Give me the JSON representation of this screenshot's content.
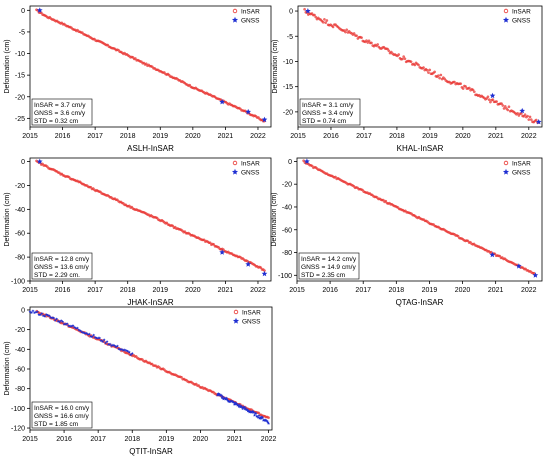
{
  "chart_data": [
    {
      "type": "scatter",
      "title": "ASLH-InSAR",
      "ylabel": "Deformation (cm)",
      "xlim": [
        2015.0,
        2022.4
      ],
      "ylim": [
        -27,
        1
      ],
      "xticks": [
        "2015",
        "2016",
        "2017",
        "2018",
        "2019",
        "2020",
        "2021",
        "2022"
      ],
      "yticks": [
        "0",
        "-5",
        "-10",
        "-15",
        "-20",
        "-25"
      ],
      "legend": [
        "InSAR",
        "GNSS"
      ],
      "legend_position": "top-right",
      "stats": [
        "InSAR = 3.7 cm/y",
        "GNSS = 3.6 cm/y",
        "STD    = 0.32 cm"
      ],
      "series": [
        {
          "name": "InSAR",
          "marker": "circle",
          "color": "#e8312d",
          "x": [
            2015.2,
            2015.5,
            2016.0,
            2016.5,
            2017.0,
            2017.5,
            2018.0,
            2018.5,
            2019.0,
            2019.5,
            2020.0,
            2020.5,
            2021.0,
            2021.5,
            2022.0,
            2022.2
          ],
          "y": [
            0,
            -1.4,
            -3.1,
            -4.9,
            -6.8,
            -8.6,
            -10.4,
            -12.3,
            -14.0,
            -15.9,
            -17.8,
            -19.5,
            -21.3,
            -23.0,
            -24.9,
            -25.7
          ]
        },
        {
          "name": "GNSS",
          "marker": "star",
          "color": "#1f2fd2",
          "x": [
            2015.3,
            2020.9,
            2021.7,
            2022.2
          ],
          "y": [
            0,
            -21.2,
            -23.5,
            -25.3
          ]
        }
      ]
    },
    {
      "type": "scatter",
      "title": "KHAL-InSAR",
      "ylabel": "Deformation (cm)",
      "xlim": [
        2015.0,
        2022.4
      ],
      "ylim": [
        -23,
        1
      ],
      "xticks": [
        "2015",
        "2016",
        "2017",
        "2018",
        "2019",
        "2020",
        "2021",
        "2022"
      ],
      "yticks": [
        "0",
        "-5",
        "-10",
        "-15",
        "-20"
      ],
      "legend": [
        "InSAR",
        "GNSS"
      ],
      "legend_position": "top-right",
      "stats": [
        "InSAR = 3.1 cm/y",
        "GNSS = 3.4 cm/y",
        "STD    = 0.74 cm"
      ],
      "series": [
        {
          "name": "InSAR",
          "marker": "circle",
          "color": "#e8312d",
          "x": [
            2015.2,
            2015.5,
            2016.0,
            2016.5,
            2017.0,
            2017.5,
            2018.0,
            2018.5,
            2019.0,
            2019.5,
            2020.0,
            2020.5,
            2021.0,
            2021.5,
            2022.0,
            2022.3
          ],
          "y": [
            0,
            -1.0,
            -2.6,
            -4.1,
            -5.7,
            -7.2,
            -8.8,
            -10.4,
            -12.0,
            -13.6,
            -15.0,
            -16.6,
            -18.2,
            -19.7,
            -21.3,
            -22.1
          ]
        },
        {
          "name": "GNSS",
          "marker": "star",
          "color": "#1f2fd2",
          "x": [
            2015.3,
            2020.9,
            2021.8,
            2022.3
          ],
          "y": [
            0,
            -16.8,
            -19.8,
            -22.0
          ]
        }
      ]
    },
    {
      "type": "scatter",
      "title": "JHAK-InSAR",
      "ylabel": "Deformation (cm)",
      "xlim": [
        2015.0,
        2022.4
      ],
      "ylim": [
        -100,
        3
      ],
      "xticks": [
        "2015",
        "2016",
        "2017",
        "2018",
        "2019",
        "2020",
        "2021",
        "2022"
      ],
      "yticks": [
        "0",
        "-20",
        "-40",
        "-60",
        "-80",
        "-100"
      ],
      "legend": [
        "InSAR",
        "GNSS"
      ],
      "legend_position": "top-right",
      "stats": [
        "InSAR = 12.8 cm/y",
        "GNSS = 13.6 cm/y",
        "STD    = 2.29 cm."
      ],
      "series": [
        {
          "name": "InSAR",
          "marker": "circle",
          "color": "#e8312d",
          "x": [
            2015.2,
            2015.5,
            2016.0,
            2016.5,
            2017.0,
            2017.5,
            2018.0,
            2018.5,
            2019.0,
            2019.5,
            2020.0,
            2020.5,
            2021.0,
            2021.5,
            2022.0,
            2022.2
          ],
          "y": [
            0,
            -4,
            -11,
            -17,
            -24,
            -30,
            -37,
            -43,
            -49,
            -56,
            -62,
            -68,
            -75,
            -81,
            -88,
            -91
          ]
        },
        {
          "name": "GNSS",
          "marker": "star",
          "color": "#1f2fd2",
          "x": [
            2015.3,
            2020.9,
            2021.7,
            2022.2
          ],
          "y": [
            0,
            -76,
            -86,
            -94
          ]
        }
      ]
    },
    {
      "type": "scatter",
      "title": "QTAG-InSAR",
      "ylabel": "Deformation (cm)",
      "xlim": [
        2015.0,
        2022.4
      ],
      "ylim": [
        -105,
        3
      ],
      "xticks": [
        "2015",
        "2016",
        "2017",
        "2018",
        "2019",
        "2020",
        "2021",
        "2022"
      ],
      "yticks": [
        "0",
        "-20",
        "-40",
        "-60",
        "-80",
        "-100"
      ],
      "legend": [
        "InSAR",
        "GNSS"
      ],
      "legend_position": "top-right",
      "stats": [
        "InSAR = 14.2 cm/y",
        "GNSS = 14.9 cm/y",
        "STD    = 2.35 cm"
      ],
      "series": [
        {
          "name": "InSAR",
          "marker": "circle",
          "color": "#e8312d",
          "x": [
            2015.2,
            2015.5,
            2016.0,
            2016.5,
            2017.0,
            2017.5,
            2018.0,
            2018.5,
            2019.0,
            2019.5,
            2020.0,
            2020.5,
            2021.0,
            2021.5,
            2022.0,
            2022.2
          ],
          "y": [
            0,
            -5,
            -12,
            -19,
            -26,
            -33,
            -40,
            -47,
            -54,
            -61,
            -68,
            -75,
            -82,
            -89,
            -96,
            -99
          ]
        },
        {
          "name": "GNSS",
          "marker": "star",
          "color": "#1f2fd2",
          "x": [
            2015.3,
            2020.9,
            2021.7,
            2022.2
          ],
          "y": [
            0,
            -82,
            -92,
            -100
          ]
        }
      ]
    },
    {
      "type": "scatter",
      "title": "QTIT-InSAR",
      "ylabel": "Deformation (cm)",
      "xlim": [
        2015.0,
        2022.1
      ],
      "ylim": [
        -122,
        3
      ],
      "xticks": [
        "2015",
        "2016",
        "2017",
        "2018",
        "2019",
        "2020",
        "2021",
        "2022"
      ],
      "yticks": [
        "0",
        "-20",
        "-40",
        "-60",
        "-80",
        "-100",
        "-120"
      ],
      "legend": [
        "InSAR",
        "GNSS"
      ],
      "legend_position": "top-right",
      "stats": [
        "InSAR = 16.0 cm/y",
        "GNSS = 16.6 cm/y",
        "STD    = 1.85 cm"
      ],
      "series": [
        {
          "name": "InSAR",
          "marker": "circle",
          "color": "#e8312d",
          "x": [
            2015.2,
            2015.5,
            2016.0,
            2016.5,
            2017.0,
            2017.5,
            2018.0,
            2018.5,
            2019.0,
            2019.5,
            2020.0,
            2020.5,
            2021.0,
            2021.5,
            2022.0
          ],
          "y": [
            -2,
            -6,
            -14,
            -22,
            -30,
            -38,
            -46,
            -54,
            -62,
            -70,
            -78,
            -86,
            -94,
            -102,
            -110
          ]
        },
        {
          "name": "GNSS",
          "marker": "star",
          "color": "#1f2fd2",
          "x": [
            2015.0,
            2015.5,
            2016.0,
            2016.5,
            2017.0,
            2017.5,
            2018.0,
            2020.5,
            2021.0,
            2021.5,
            2022.0
          ],
          "y": [
            -1,
            -6,
            -13,
            -21,
            -29,
            -37,
            -45,
            -86,
            -95,
            -104,
            -114
          ]
        }
      ]
    }
  ]
}
